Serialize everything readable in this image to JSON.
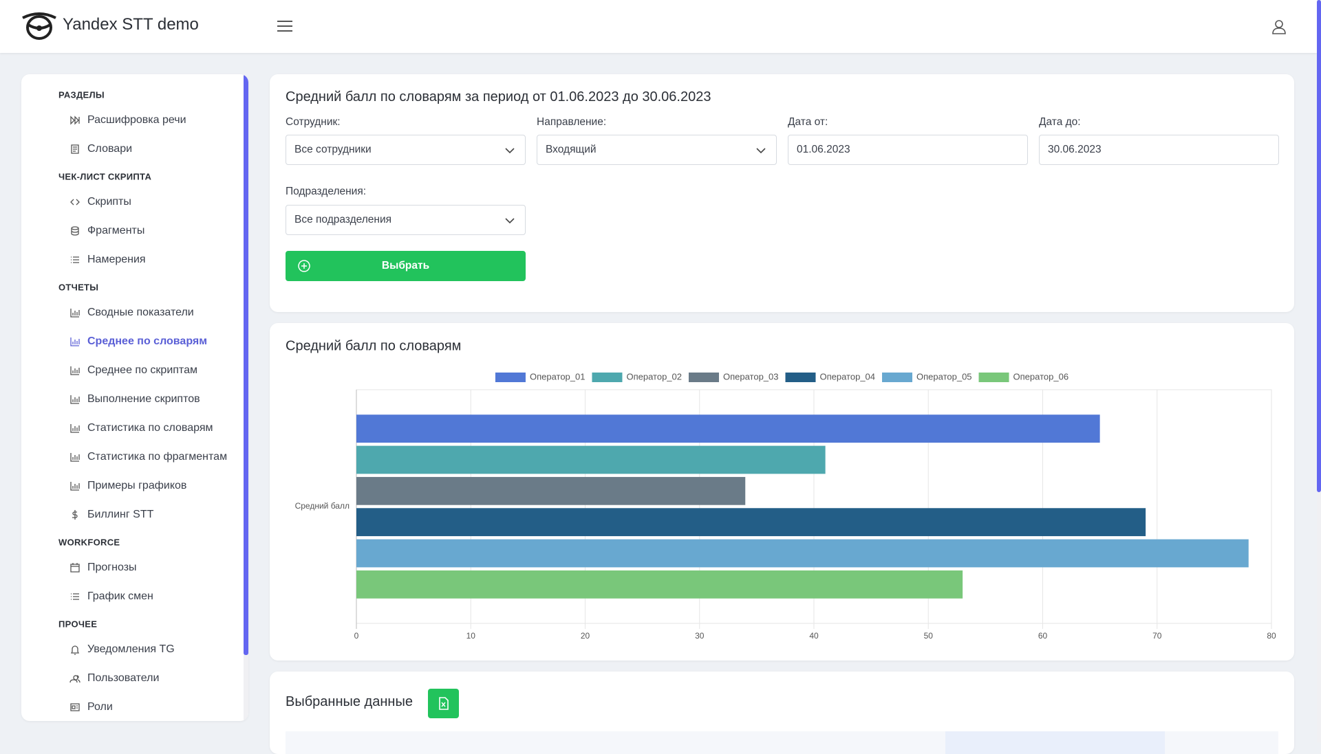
{
  "header": {
    "title": "Yandex STT demo"
  },
  "sidebar": {
    "sections": [
      {
        "title": "РАЗДЕЛЫ",
        "items": [
          {
            "label": "Расшифровка речи"
          },
          {
            "label": "Словари"
          }
        ]
      },
      {
        "title": "ЧЕК-ЛИСТ СКРИПТА",
        "items": [
          {
            "label": "Скрипты"
          },
          {
            "label": "Фрагменты"
          },
          {
            "label": "Намерения"
          }
        ]
      },
      {
        "title": "ОТЧЕТЫ",
        "items": [
          {
            "label": "Сводные показатели"
          },
          {
            "label": "Среднее по словарям",
            "active": true
          },
          {
            "label": "Среднее по скриптам"
          },
          {
            "label": "Выполнение скриптов"
          },
          {
            "label": "Статистика по словарям"
          },
          {
            "label": "Статистика по фрагментам"
          },
          {
            "label": "Примеры графиков"
          },
          {
            "label": "Биллинг STT"
          }
        ]
      },
      {
        "title": "WORKFORCE",
        "items": [
          {
            "label": "Прогнозы"
          },
          {
            "label": "График смен"
          }
        ]
      },
      {
        "title": "ПРОЧЕЕ",
        "items": [
          {
            "label": "Уведомления TG"
          },
          {
            "label": "Пользователи"
          },
          {
            "label": "Роли"
          }
        ]
      }
    ]
  },
  "filters": {
    "title": "Средний балл по словарям за период от 01.06.2023 до 30.06.2023",
    "fields": [
      {
        "label": "Сотрудник:",
        "value": "Все сотрудники",
        "kind": "select"
      },
      {
        "label": "Направление:",
        "value": "Входящий",
        "kind": "select"
      },
      {
        "label": "Дата от:",
        "value": "01.06.2023",
        "kind": "date"
      },
      {
        "label": "Дата до:",
        "value": "30.06.2023",
        "kind": "date"
      },
      {
        "label": "Подразделения:",
        "value": "Все подразделения",
        "kind": "select"
      }
    ],
    "button": "Выбрать"
  },
  "chart_data": {
    "type": "bar",
    "orientation": "horizontal",
    "title": "Средний балл по словарям",
    "categories": [
      "Средний балл"
    ],
    "series": [
      {
        "name": "Оператор_01",
        "color": "#5178d6",
        "values": [
          65
        ]
      },
      {
        "name": "Оператор_02",
        "color": "#4ea8ae",
        "values": [
          41
        ]
      },
      {
        "name": "Оператор_03",
        "color": "#6a7b88",
        "values": [
          34
        ]
      },
      {
        "name": "Оператор_04",
        "color": "#235e87",
        "values": [
          69
        ]
      },
      {
        "name": "Оператор_05",
        "color": "#68a8d0",
        "values": [
          78
        ]
      },
      {
        "name": "Оператор_06",
        "color": "#79c77a",
        "values": [
          53
        ]
      }
    ],
    "xlim": [
      0,
      80
    ],
    "xticks": [
      0,
      10,
      20,
      30,
      40,
      50,
      60,
      70,
      80
    ],
    "grid": true,
    "legend": "top"
  },
  "selected": {
    "title": "Выбранные данные"
  }
}
